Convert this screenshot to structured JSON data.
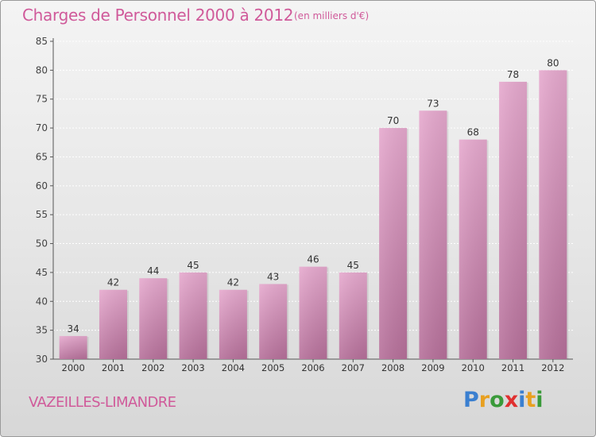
{
  "title": "Charges de Personnel 2000 à 2012",
  "subtitle": "(en milliers d'€)",
  "commune": "VAZEILLES-LIMANDRE",
  "logo": {
    "text": "Proxiti",
    "colors": [
      "#3a7fd0",
      "#e8a020",
      "#3a9a3a",
      "#e03030",
      "#3a7fd0",
      "#e8a020",
      "#3a9a3a"
    ]
  },
  "colors": {
    "bar_light": "#e6a9ce",
    "bar_dark": "#b6709a",
    "text": "#d05a9a",
    "axis": "#555555"
  },
  "chart_data": {
    "type": "bar",
    "title": "Charges de Personnel 2000 à 2012",
    "subtitle": "(en milliers d'€)",
    "xlabel": "",
    "ylabel": "",
    "categories": [
      "2000",
      "2001",
      "2002",
      "2003",
      "2004",
      "2005",
      "2006",
      "2007",
      "2008",
      "2009",
      "2010",
      "2011",
      "2012"
    ],
    "values": [
      34,
      42,
      44,
      45,
      42,
      43,
      46,
      45,
      70,
      73,
      68,
      78,
      80
    ],
    "ylim": [
      30,
      85
    ],
    "yticks": [
      30,
      35,
      40,
      45,
      50,
      55,
      60,
      65,
      70,
      75,
      80,
      85
    ],
    "grid": true,
    "data_labels": true
  }
}
